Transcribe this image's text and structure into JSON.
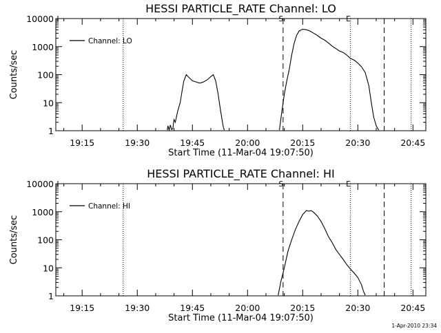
{
  "chart_data": [
    {
      "type": "line",
      "title": "HESSI PARTICLE_RATE Channel: LO",
      "xlabel": "Start Time (11-Mar-04 19:07:50)",
      "ylabel": "Counts/sec",
      "y_scale": "log",
      "xlim": [
        "19:07:50",
        "20:48:30"
      ],
      "ylim": [
        1,
        10000
      ],
      "x_ticks": [
        "19:15",
        "19:30",
        "19:45",
        "20:00",
        "20:15",
        "20:30",
        "20:45"
      ],
      "y_ticks": [
        "1",
        "10",
        "100",
        "1000",
        "10000"
      ],
      "legend": {
        "position": "top-left",
        "entries": [
          "Channel: LO"
        ]
      },
      "grid": false,
      "markers": [
        {
          "label": "S",
          "time": "20:09:40",
          "style": "dashed"
        },
        {
          "label": "E",
          "time": "20:28:00",
          "style": "dotted"
        },
        {
          "label": "",
          "time": "19:26:10",
          "style": "dotted"
        },
        {
          "label": "",
          "time": "20:37:10",
          "style": "dashed"
        },
        {
          "label": "",
          "time": "20:44:30",
          "style": "dotted"
        }
      ],
      "series": [
        {
          "name": "Channel: LO",
          "segments": [
            {
              "x": [
                "19:38:10",
                "19:38:20",
                "19:38:40",
                "19:39:00",
                "19:39:20",
                "19:39:40",
                "19:40:00",
                "19:40:20",
                "19:41:00",
                "19:41:40",
                "19:42:10",
                "19:42:40",
                "19:43:20",
                "19:44:00",
                "19:45:00",
                "19:46:00",
                "19:47:00",
                "19:48:00",
                "19:49:00",
                "19:50:00",
                "19:50:40",
                "19:51:20",
                "19:52:00",
                "19:52:40",
                "19:53:20",
                "19:53:40"
              ],
              "y": [
                1.05,
                1.5,
                1.05,
                1.6,
                1.1,
                1.2,
                2.5,
                2,
                5,
                10,
                25,
                60,
                100,
                80,
                60,
                55,
                50,
                55,
                65,
                85,
                100,
                60,
                20,
                5,
                1.5,
                1.05
              ]
            },
            {
              "x": [
                "20:08:40",
                "20:09:20",
                "20:10:00",
                "20:10:40",
                "20:11:20",
                "20:12:00",
                "20:12:40",
                "20:13:20",
                "20:14:00",
                "20:15:00",
                "20:16:00",
                "20:17:00",
                "20:18:00",
                "20:19:00",
                "20:20:00",
                "20:21:00",
                "20:22:00",
                "20:23:00",
                "20:24:00",
                "20:25:00",
                "20:26:00",
                "20:27:00",
                "20:28:00",
                "20:29:00",
                "20:30:00",
                "20:31:00",
                "20:32:00",
                "20:33:00",
                "20:33:40",
                "20:34:20",
                "20:35:00",
                "20:35:40"
              ],
              "y": [
                1.05,
                5,
                20,
                60,
                150,
                500,
                1300,
                2500,
                3600,
                4200,
                4000,
                3600,
                3000,
                2500,
                2000,
                1700,
                1350,
                1050,
                850,
                700,
                620,
                500,
                380,
                330,
                260,
                190,
                120,
                40,
                10,
                3,
                1.5,
                1.05
              ]
            }
          ]
        }
      ]
    },
    {
      "type": "line",
      "title": "HESSI PARTICLE_RATE Channel: HI",
      "xlabel": "Start Time (11-Mar-04 19:07:50)",
      "ylabel": "Counts/sec",
      "y_scale": "log",
      "xlim": [
        "19:07:50",
        "20:48:30"
      ],
      "ylim": [
        1,
        10000
      ],
      "x_ticks": [
        "19:15",
        "19:30",
        "19:45",
        "20:00",
        "20:15",
        "20:30",
        "20:45"
      ],
      "y_ticks": [
        "1",
        "10",
        "100",
        "1000",
        "10000"
      ],
      "legend": {
        "position": "top-left",
        "entries": [
          "Channel: HI"
        ]
      },
      "grid": false,
      "markers": [
        {
          "label": "S",
          "time": "20:09:40",
          "style": "dashed"
        },
        {
          "label": "E",
          "time": "20:28:00",
          "style": "dotted"
        },
        {
          "label": "",
          "time": "19:26:10",
          "style": "dotted"
        },
        {
          "label": "",
          "time": "20:37:10",
          "style": "dashed"
        },
        {
          "label": "",
          "time": "20:44:30",
          "style": "dotted"
        }
      ],
      "series": [
        {
          "name": "Channel: HI",
          "segments": [
            {
              "x": [
                "20:08:20",
                "20:09:00",
                "20:10:00",
                "20:11:00",
                "20:12:00",
                "20:13:00",
                "20:14:00",
                "20:15:00",
                "20:16:00",
                "20:16:40",
                "20:17:20",
                "20:18:00",
                "20:19:00",
                "20:20:00",
                "20:21:00",
                "20:22:00",
                "20:23:00",
                "20:24:00",
                "20:25:00",
                "20:26:00",
                "20:27:00",
                "20:28:00",
                "20:29:00",
                "20:30:00",
                "20:31:00",
                "20:31:30",
                "20:32:00"
              ],
              "y": [
                1.05,
                3,
                10,
                40,
                100,
                230,
                450,
                800,
                1100,
                1050,
                1100,
                950,
                700,
                450,
                250,
                130,
                80,
                45,
                30,
                20,
                13,
                9,
                6.5,
                4.5,
                2.5,
                1.5,
                1.05
              ]
            }
          ]
        }
      ]
    }
  ],
  "timestamp": "1-Apr-2010 23:34"
}
